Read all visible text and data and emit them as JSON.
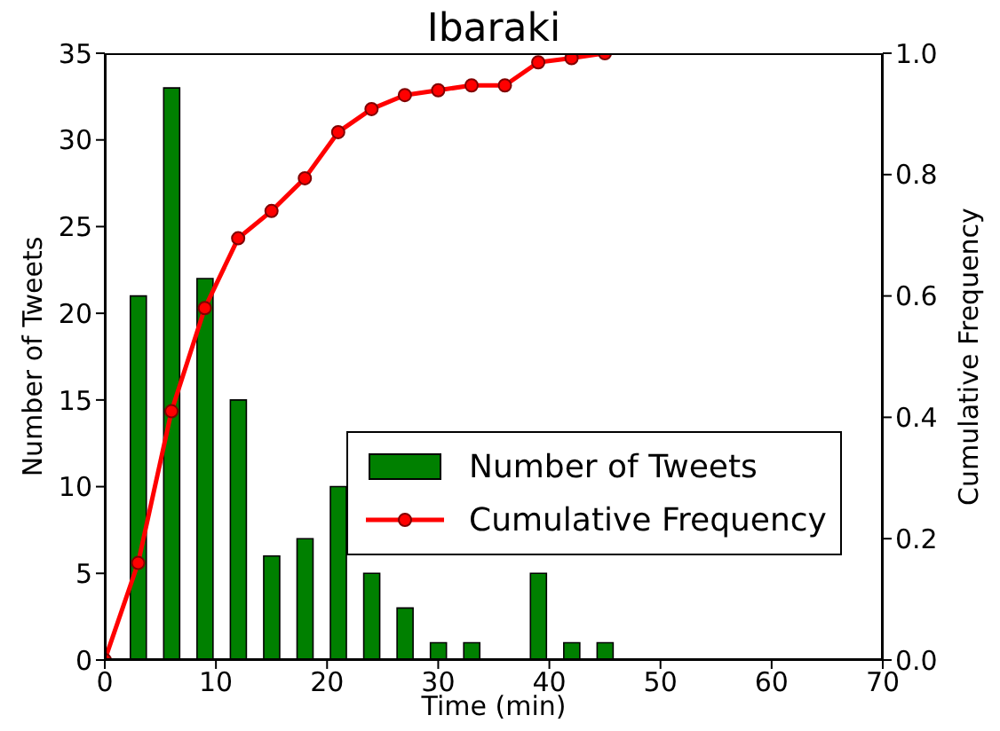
{
  "chart_data": {
    "type": "bar",
    "title": "Ibaraki",
    "xlabel": "Time (min)",
    "ylabel": "Number of Tweets",
    "y2label": "Cumulative Frequency",
    "series": [
      {
        "name": "Number of Tweets",
        "color": "#008000",
        "x": [
          3,
          6,
          9,
          12,
          15,
          18,
          21,
          24,
          27,
          30,
          33,
          36,
          39,
          42,
          45
        ],
        "values": [
          21,
          33,
          22,
          15,
          6,
          7,
          10,
          5,
          3,
          1,
          1,
          0,
          5,
          1,
          1
        ]
      },
      {
        "name": "Cumulative Frequency",
        "type": "line",
        "axis": "y2",
        "color": "#ff0000",
        "marker": "circle",
        "x": [
          0,
          3,
          6,
          9,
          12,
          15,
          18,
          21,
          24,
          27,
          30,
          33,
          36,
          39,
          42,
          45
        ],
        "values": [
          0,
          0.16,
          0.41,
          0.58,
          0.695,
          0.74,
          0.794,
          0.87,
          0.908,
          0.931,
          0.939,
          0.947,
          0.947,
          0.985,
          0.992,
          1.0
        ]
      }
    ],
    "xlim": [
      0,
      70
    ],
    "xticks": [
      0,
      10,
      20,
      30,
      40,
      50,
      60,
      70
    ],
    "ylim": [
      0,
      35
    ],
    "yticks": [
      0,
      5,
      10,
      15,
      20,
      25,
      30,
      35
    ],
    "y2lim": [
      0,
      1
    ],
    "y2ticks": [
      {
        "value": 0,
        "label": "0.0"
      },
      {
        "value": 0.2,
        "label": "0.2"
      },
      {
        "value": 0.4,
        "label": "0.4"
      },
      {
        "value": 0.6,
        "label": "0.6"
      },
      {
        "value": 0.8,
        "label": "0.8"
      },
      {
        "value": 1,
        "label": "1.0"
      }
    ],
    "legend": "right",
    "grid": false
  }
}
